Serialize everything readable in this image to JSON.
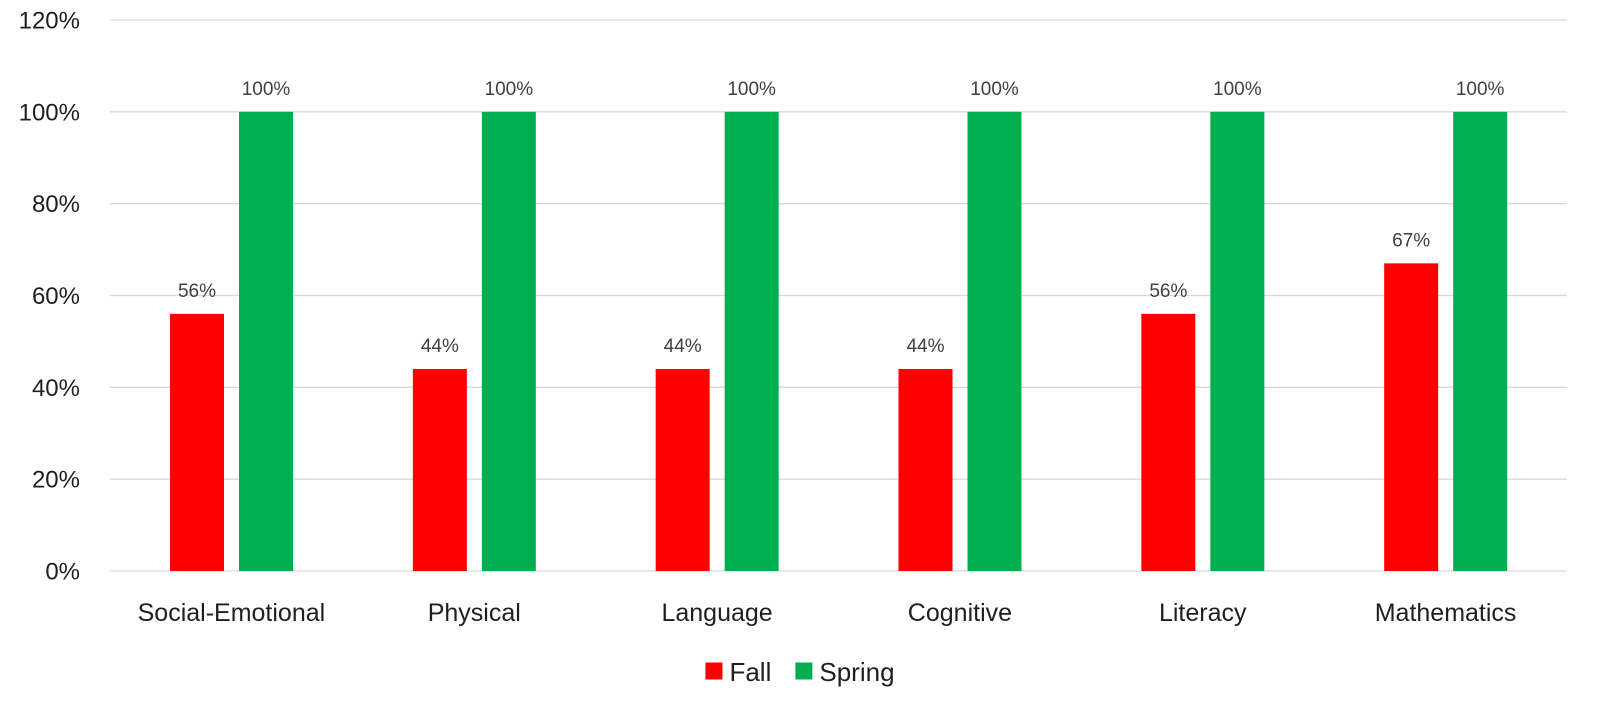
{
  "chart_data": {
    "type": "bar",
    "categories": [
      "Social-Emotional",
      "Physical",
      "Language",
      "Cognitive",
      "Literacy",
      "Mathematics"
    ],
    "series": [
      {
        "name": "Fall",
        "color": "#ff0000",
        "values": [
          56,
          44,
          44,
          44,
          56,
          67
        ],
        "labels": [
          "56%",
          "44%",
          "44%",
          "44%",
          "56%",
          "67%"
        ]
      },
      {
        "name": "Spring",
        "color": "#00b050",
        "values": [
          100,
          100,
          100,
          100,
          100,
          100
        ],
        "labels": [
          "100%",
          "100%",
          "100%",
          "100%",
          "100%",
          "100%"
        ]
      }
    ],
    "title": "",
    "xlabel": "",
    "ylabel": "",
    "ylim": [
      0,
      120
    ],
    "yticks": [
      "0%",
      "20%",
      "40%",
      "60%",
      "80%",
      "100%",
      "120%"
    ],
    "grid": true,
    "legend": "bottom"
  }
}
